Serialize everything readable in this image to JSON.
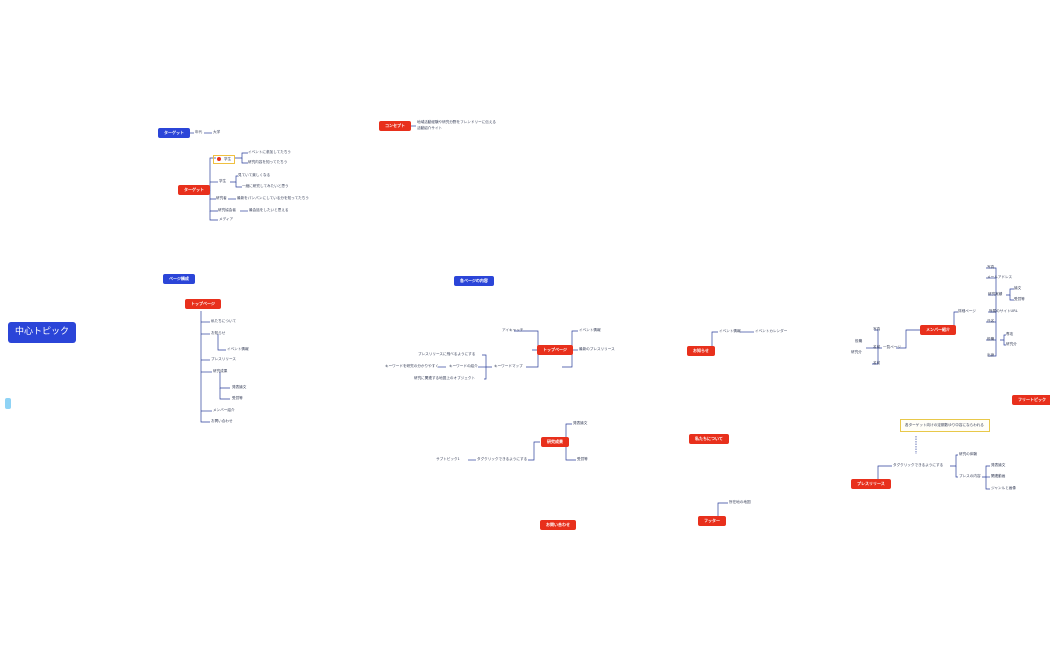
{
  "root": "中心トピック",
  "free_topic": "フリートピック",
  "target_small": {
    "label": "ターゲット",
    "age": "年代",
    "age_value": "大学"
  },
  "concept": {
    "label": "コンセプト",
    "line1": "地域活動経験や研究分野をフレンドリーに伝える",
    "line2": "活動紹介サイト"
  },
  "target": {
    "label": "ターゲット",
    "highlight": "学生",
    "student_children": [
      "イベントに参加してたちう",
      "研究内容を知ってたちう"
    ],
    "other": "学生",
    "other_children": [
      "見ていて楽しくなる",
      "一緒に研究してみたいと思う"
    ],
    "researcher": "研究者",
    "researcher_child": "最新をパンパンにしている分を知ってたちう",
    "peer": "研究協会者",
    "peer_child": "最会話をしたいと思える",
    "media": "メディア"
  },
  "page_structure": "ページ構成",
  "top_page": {
    "label": "トップページ",
    "items": [
      "私たちについて",
      "お知らせ",
      "イベント情報",
      "プレスリリース",
      "研究成果",
      "発表論文",
      "受賞等",
      "メンバー紹介",
      "お問い合わせ"
    ]
  },
  "page_contents": "各ページの内容",
  "top_detail": {
    "label": "トップページ",
    "right": [
      "アイキャッチ",
      "イベント情報",
      "最新のプレスリリース"
    ],
    "keyword_map": "キーワードマップ",
    "km_children": [
      "プレスリリースに飛べるようにする",
      "キーワードの紹介",
      "研究に関連する地図上のオブジェクト"
    ],
    "kw_leaf": "キーワードを研究の分かりやすく"
  },
  "news": {
    "label": "お知らせ",
    "child": "イベント情報",
    "leaf": "イベントカレンダー"
  },
  "about": "私たちについて",
  "research": {
    "label": "研究成果",
    "children": [
      "発表論文",
      "受賞等"
    ],
    "left": "タグクリックできるようにする",
    "leaf": "サブトピック1"
  },
  "contact": "お問い合わせ",
  "footer": {
    "label": "フッター",
    "child": "所在地の地図"
  },
  "members": {
    "label": "メンバー紹介",
    "list": "一覧ページ",
    "list_left": [
      "写真",
      "役職",
      "名前",
      "研究分",
      "役職",
      "名前"
    ],
    "detail": "詳細ページ",
    "detail_right": [
      "写真",
      "メールアドレス",
      "研究実績",
      "論文",
      "受賞等",
      "所属のサイトURL",
      "氏名",
      "役職",
      "専攻",
      "研究分",
      "出身"
    ]
  },
  "press": {
    "label": "プレスリリース",
    "callout": "各ターゲット向けの定期数ゆり中容にならわれる",
    "tag": "タグクリックできるようにする",
    "children": [
      "研究の体験",
      "プレスの内容"
    ],
    "content_children": [
      "発表論文",
      "関連動画",
      "ジャンルと画像"
    ]
  }
}
